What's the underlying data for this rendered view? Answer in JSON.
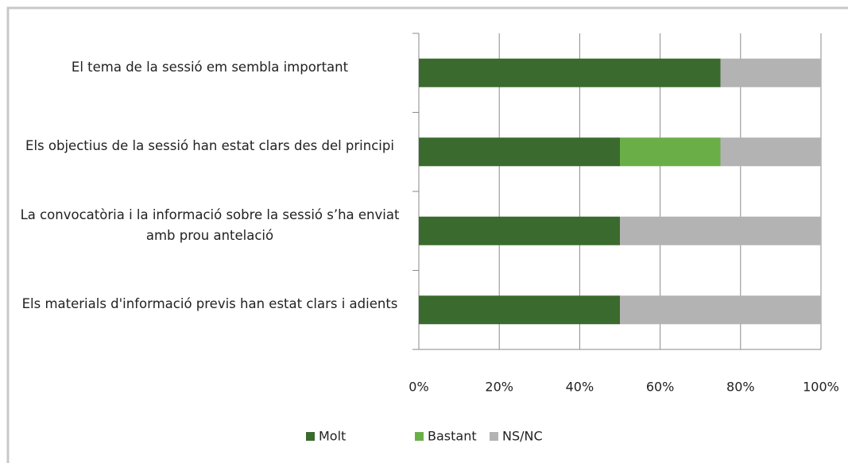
{
  "chart_data": {
    "type": "stacked_barh",
    "categories": [
      "El tema de la sessió em sembla important",
      "Els objectius de la sessió han estat clars des del principi",
      "La convocatòria i la informació sobre la sessió s’ha enviat amb prou antelació",
      "Els materials d'informació previs han estat clars i adients"
    ],
    "series": [
      {
        "name": "Molt",
        "color": "#3b6a2e",
        "values": [
          75,
          50,
          50,
          50
        ]
      },
      {
        "name": "Bastant",
        "color": "#6aae48",
        "values": [
          0,
          25,
          0,
          0
        ]
      },
      {
        "name": "NS/NC",
        "color": "#b3b3b3",
        "values": [
          25,
          25,
          50,
          50
        ]
      }
    ],
    "xlim": [
      0,
      100
    ],
    "xticks": [
      {
        "value": 0,
        "label": "0%"
      },
      {
        "value": 20,
        "label": "20%"
      },
      {
        "value": 40,
        "label": "40%"
      },
      {
        "value": 60,
        "label": "60%"
      },
      {
        "value": 80,
        "label": "80%"
      },
      {
        "value": 100,
        "label": "100%"
      }
    ],
    "grid": true,
    "legend": "bottom"
  }
}
